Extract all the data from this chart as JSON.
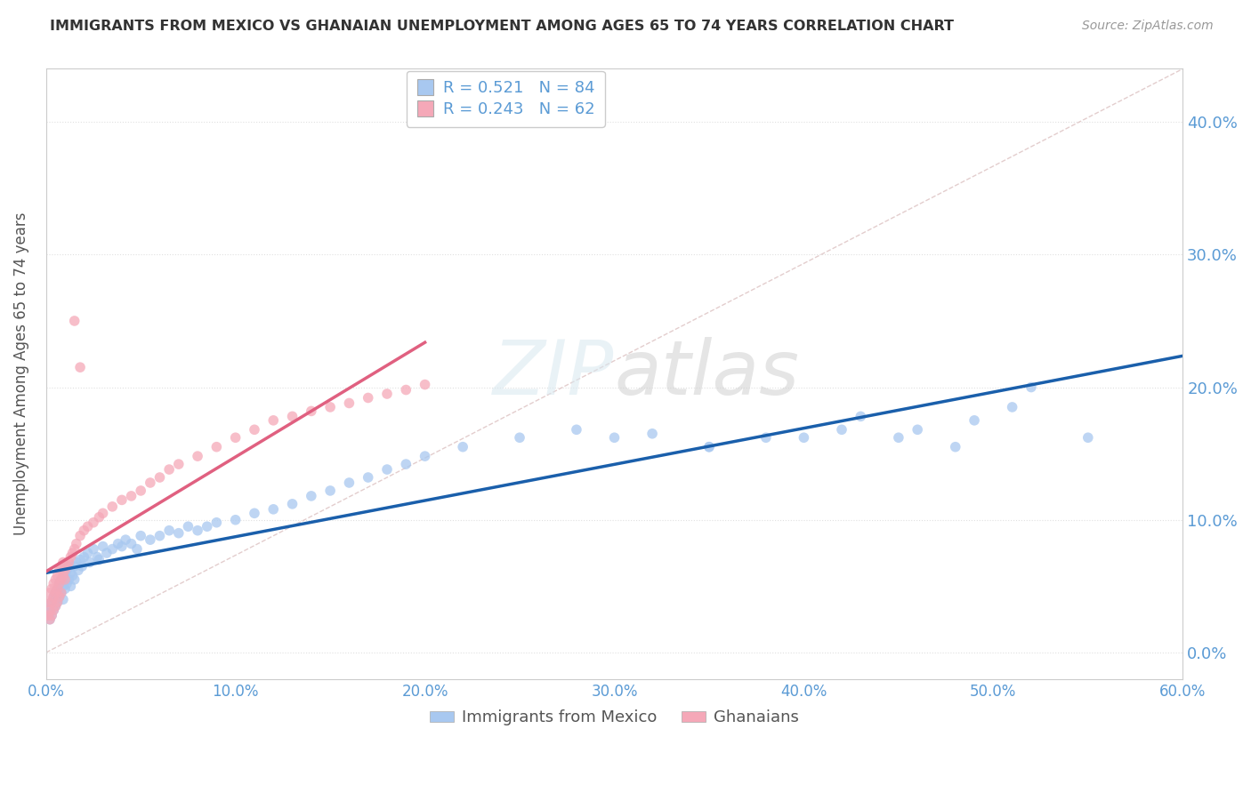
{
  "title": "IMMIGRANTS FROM MEXICO VS GHANAIAN UNEMPLOYMENT AMONG AGES 65 TO 74 YEARS CORRELATION CHART",
  "source": "Source: ZipAtlas.com",
  "ylabel": "Unemployment Among Ages 65 to 74 years",
  "blue_label": "Immigrants from Mexico",
  "pink_label": "Ghanaians",
  "blue_R": 0.521,
  "blue_N": 84,
  "pink_R": 0.243,
  "pink_N": 62,
  "blue_color": "#A8C8F0",
  "pink_color": "#F5A8B8",
  "blue_line_color": "#1A5FAB",
  "pink_line_color": "#E06080",
  "diag_line_color": "#E0C8C8",
  "xlim": [
    0.0,
    0.6
  ],
  "ylim": [
    -0.02,
    0.44
  ],
  "yticks": [
    0.0,
    0.1,
    0.2,
    0.3,
    0.4
  ],
  "xticks": [
    0.0,
    0.1,
    0.2,
    0.3,
    0.4,
    0.5,
    0.6
  ],
  "blue_x": [
    0.001,
    0.002,
    0.002,
    0.003,
    0.003,
    0.004,
    0.004,
    0.005,
    0.005,
    0.006,
    0.006,
    0.007,
    0.007,
    0.008,
    0.008,
    0.009,
    0.009,
    0.01,
    0.01,
    0.011,
    0.011,
    0.012,
    0.012,
    0.013,
    0.013,
    0.014,
    0.015,
    0.015,
    0.016,
    0.017,
    0.018,
    0.019,
    0.02,
    0.022,
    0.023,
    0.025,
    0.027,
    0.028,
    0.03,
    0.032,
    0.035,
    0.038,
    0.04,
    0.042,
    0.045,
    0.048,
    0.05,
    0.055,
    0.06,
    0.065,
    0.07,
    0.075,
    0.08,
    0.085,
    0.09,
    0.1,
    0.11,
    0.12,
    0.13,
    0.14,
    0.15,
    0.16,
    0.17,
    0.18,
    0.19,
    0.2,
    0.22,
    0.25,
    0.28,
    0.3,
    0.32,
    0.35,
    0.38,
    0.42,
    0.45,
    0.48,
    0.52,
    0.55,
    0.35,
    0.4,
    0.43,
    0.46,
    0.49,
    0.51
  ],
  "blue_y": [
    0.03,
    0.035,
    0.025,
    0.038,
    0.028,
    0.042,
    0.032,
    0.045,
    0.035,
    0.048,
    0.038,
    0.052,
    0.042,
    0.055,
    0.045,
    0.05,
    0.04,
    0.058,
    0.048,
    0.062,
    0.052,
    0.065,
    0.055,
    0.06,
    0.05,
    0.058,
    0.065,
    0.055,
    0.068,
    0.062,
    0.07,
    0.065,
    0.072,
    0.075,
    0.068,
    0.078,
    0.072,
    0.07,
    0.08,
    0.075,
    0.078,
    0.082,
    0.08,
    0.085,
    0.082,
    0.078,
    0.088,
    0.085,
    0.088,
    0.092,
    0.09,
    0.095,
    0.092,
    0.095,
    0.098,
    0.1,
    0.105,
    0.108,
    0.112,
    0.118,
    0.122,
    0.128,
    0.132,
    0.138,
    0.142,
    0.148,
    0.155,
    0.162,
    0.168,
    0.162,
    0.165,
    0.155,
    0.162,
    0.168,
    0.162,
    0.155,
    0.2,
    0.162,
    0.155,
    0.162,
    0.178,
    0.168,
    0.175,
    0.185
  ],
  "pink_x": [
    0.001,
    0.001,
    0.002,
    0.002,
    0.002,
    0.003,
    0.003,
    0.003,
    0.004,
    0.004,
    0.004,
    0.005,
    0.005,
    0.005,
    0.006,
    0.006,
    0.006,
    0.007,
    0.007,
    0.007,
    0.008,
    0.008,
    0.008,
    0.009,
    0.009,
    0.01,
    0.01,
    0.011,
    0.012,
    0.013,
    0.014,
    0.015,
    0.016,
    0.018,
    0.02,
    0.022,
    0.025,
    0.028,
    0.03,
    0.035,
    0.04,
    0.045,
    0.05,
    0.055,
    0.06,
    0.065,
    0.07,
    0.08,
    0.09,
    0.1,
    0.11,
    0.12,
    0.13,
    0.14,
    0.15,
    0.16,
    0.17,
    0.18,
    0.19,
    0.2,
    0.015,
    0.018
  ],
  "pink_y": [
    0.028,
    0.038,
    0.032,
    0.045,
    0.025,
    0.048,
    0.038,
    0.028,
    0.052,
    0.042,
    0.032,
    0.055,
    0.045,
    0.035,
    0.058,
    0.048,
    0.038,
    0.062,
    0.052,
    0.042,
    0.065,
    0.055,
    0.045,
    0.068,
    0.058,
    0.062,
    0.055,
    0.065,
    0.068,
    0.072,
    0.075,
    0.078,
    0.082,
    0.088,
    0.092,
    0.095,
    0.098,
    0.102,
    0.105,
    0.11,
    0.115,
    0.118,
    0.122,
    0.128,
    0.132,
    0.138,
    0.142,
    0.148,
    0.155,
    0.162,
    0.168,
    0.175,
    0.178,
    0.182,
    0.185,
    0.188,
    0.192,
    0.195,
    0.198,
    0.202,
    0.25,
    0.215
  ]
}
